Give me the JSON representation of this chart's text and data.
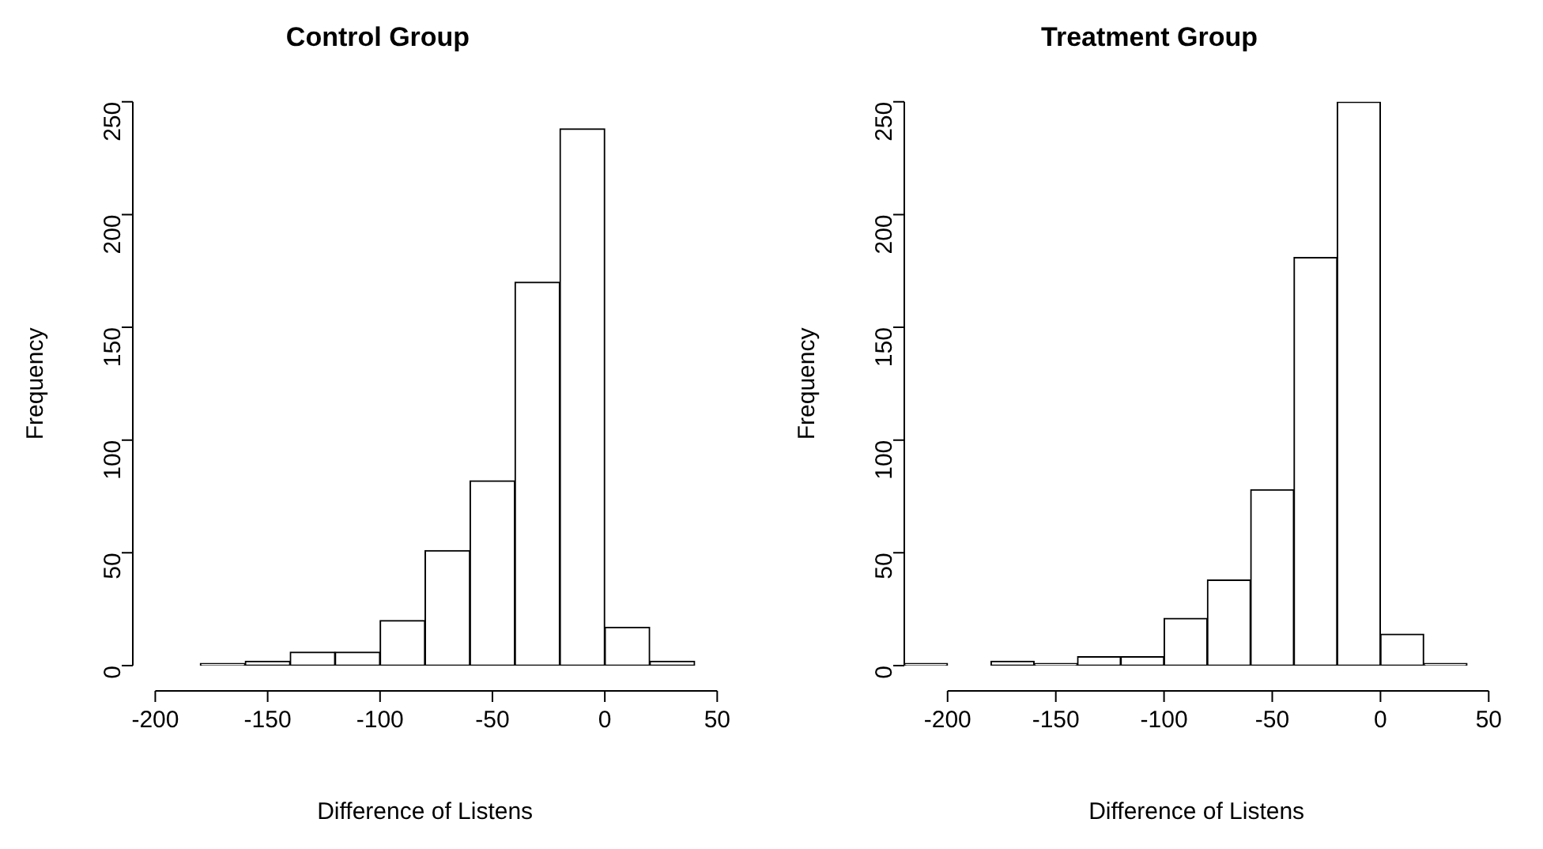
{
  "chart_data": [
    {
      "type": "histogram",
      "title": "Control Group",
      "xlabel": "Difference of Listens",
      "ylabel": "Frequency",
      "bins": [
        -180,
        -160,
        -140,
        -120,
        -100,
        -80,
        -60,
        -40,
        -20,
        0,
        20,
        40
      ],
      "values": [
        1,
        2,
        6,
        6,
        20,
        51,
        82,
        170,
        238,
        17,
        2
      ],
      "color": "#ffffff",
      "xlim": [
        -210,
        50
      ],
      "xticks": [
        -200,
        -150,
        -100,
        -50,
        0,
        50
      ],
      "ylim": [
        0,
        250
      ],
      "yticks": [
        0,
        50,
        100,
        150,
        200,
        250
      ],
      "grid": false,
      "legend": false
    },
    {
      "type": "histogram",
      "title": "Treatment Group",
      "xlabel": "Difference of Listens",
      "ylabel": "Frequency",
      "bins": [
        -220,
        -200,
        -180,
        -160,
        -140,
        -120,
        -100,
        -80,
        -60,
        -40,
        -20,
        0,
        20,
        40
      ],
      "values": [
        1,
        0,
        2,
        1,
        4,
        4,
        21,
        38,
        78,
        181,
        250,
        14,
        1
      ],
      "color": "#ffffff",
      "xlim": [
        -220,
        50
      ],
      "xticks": [
        -200,
        -150,
        -100,
        -50,
        0,
        50
      ],
      "ylim": [
        0,
        250
      ],
      "yticks": [
        0,
        50,
        100,
        150,
        200,
        250
      ],
      "grid": false,
      "legend": false
    }
  ]
}
